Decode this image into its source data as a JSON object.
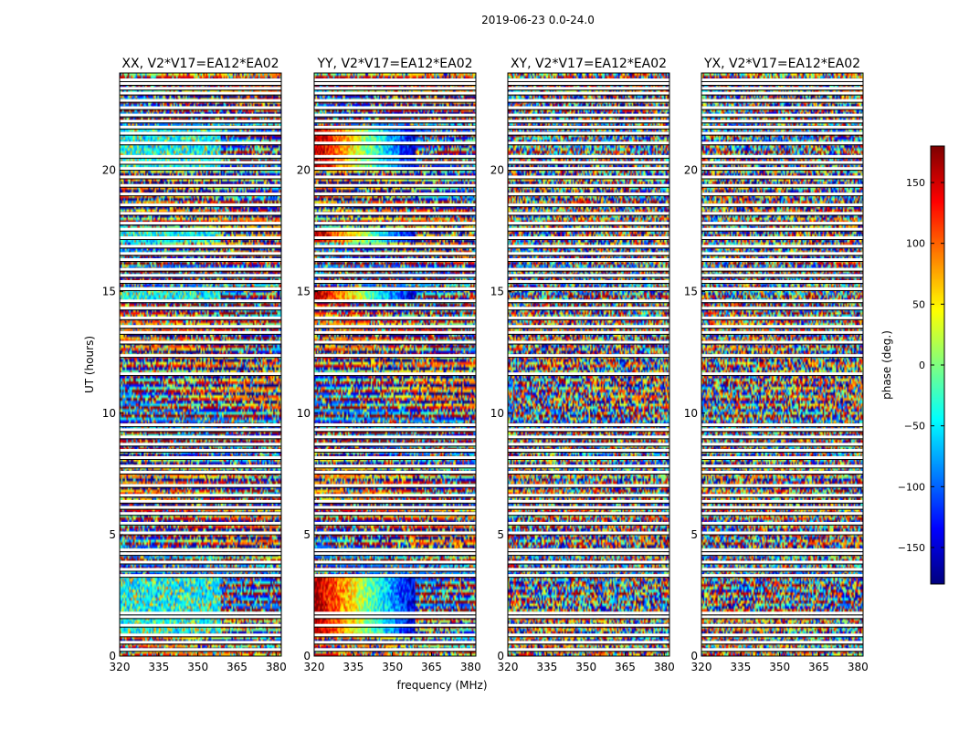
{
  "suptitle": "2019-06-23 0.0-24.0",
  "chart_data": [
    {
      "type": "heatmap",
      "title": "XX, V2*V17=EA12*EA02",
      "xlim": [
        320,
        382
      ],
      "ylim": [
        0,
        24
      ],
      "xticks": [
        320,
        335,
        350,
        365,
        380
      ],
      "yticks": [
        0,
        5,
        10,
        15,
        20
      ],
      "ylabel": "UT (hours)",
      "xlabel": "",
      "pattern": "XX"
    },
    {
      "type": "heatmap",
      "title": "YY, V2*V17=EA12*EA02",
      "xlim": [
        320,
        382
      ],
      "ylim": [
        0,
        24
      ],
      "xticks": [
        320,
        335,
        350,
        365,
        380
      ],
      "yticks": [
        0,
        5,
        10,
        15,
        20
      ],
      "ylabel": "",
      "xlabel": "frequency (MHz)",
      "pattern": "YY"
    },
    {
      "type": "heatmap",
      "title": "XY, V2*V17=EA12*EA02",
      "xlim": [
        320,
        382
      ],
      "ylim": [
        0,
        24
      ],
      "xticks": [
        320,
        335,
        350,
        365,
        380
      ],
      "yticks": [
        0,
        5,
        10,
        15,
        20
      ],
      "ylabel": "",
      "xlabel": "",
      "pattern": "cross"
    },
    {
      "type": "heatmap",
      "title": "YX, V2*V17=EA12*EA02",
      "xlim": [
        320,
        382
      ],
      "ylim": [
        0,
        24
      ],
      "xticks": [
        320,
        335,
        350,
        365,
        380
      ],
      "yticks": [
        0,
        5,
        10,
        15,
        20
      ],
      "ylabel": "",
      "xlabel": "",
      "pattern": "cross"
    }
  ],
  "colorbar": {
    "label": "phase (deg.)",
    "range": [
      -180,
      180
    ],
    "ticks": [
      150,
      100,
      50,
      0,
      -50,
      -100,
      -150
    ],
    "tick_labels": [
      "150",
      "100",
      "50",
      "0",
      "−50",
      "−100",
      "−150"
    ],
    "colormap": "jet"
  },
  "flagged_ut_hours": [
    0.25,
    0.55,
    0.85,
    1.25,
    1.6,
    1.75,
    3.3,
    3.55,
    3.85,
    4.2,
    4.35,
    5.05,
    5.45,
    5.85,
    6.1,
    6.35,
    6.6,
    7.0,
    7.55,
    7.8,
    8.15,
    8.45,
    8.7,
    9.0,
    9.3,
    9.5,
    11.6,
    12.35,
    12.9,
    13.3,
    13.55,
    13.9,
    14.3,
    14.6,
    15.1,
    15.4,
    15.65,
    15.9,
    16.3,
    16.55,
    16.85,
    17.2,
    17.55,
    17.8,
    18.2,
    18.55,
    19.0,
    19.35,
    19.7,
    20.05,
    20.3,
    20.55,
    21.1,
    21.5,
    21.75,
    22.0,
    22.25,
    22.55,
    22.85,
    23.15,
    23.35,
    23.55,
    23.7
  ]
}
